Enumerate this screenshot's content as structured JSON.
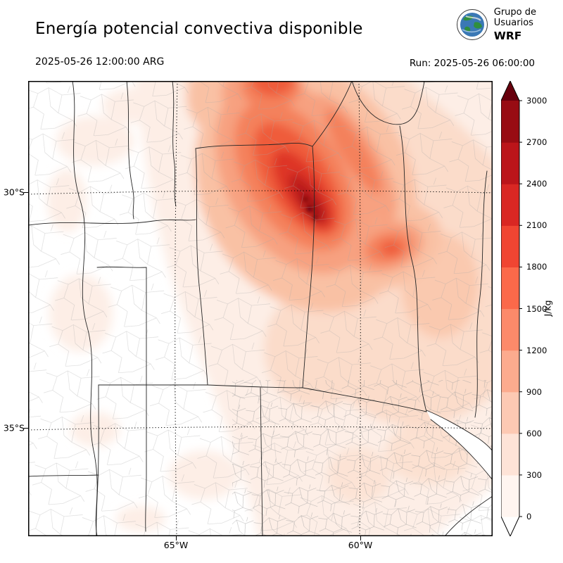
{
  "header": {
    "title": "Energía potencial convectiva disponible",
    "valid_time": "2025-05-26 12:00:00 ARG",
    "run_time": "Run: 2025-05-26 06:00:00",
    "logo": {
      "line1": "Grupo de",
      "line2": "Usuarios",
      "line3": "WRF"
    }
  },
  "map": {
    "lat_ticks": [
      "30°S",
      "35°S"
    ],
    "lon_ticks": [
      "65°W",
      "60°W"
    ]
  },
  "colorbar": {
    "unit": "J/kg",
    "ticks": [
      "0",
      "300",
      "600",
      "900",
      "1200",
      "1500",
      "1800",
      "2100",
      "2400",
      "2700",
      "3000"
    ],
    "segment_colors": [
      "#fff5f0",
      "#fee3d7",
      "#fdc9b3",
      "#fcab8e",
      "#fc8a6a",
      "#fb694a",
      "#f04532",
      "#d92723",
      "#bb151a",
      "#980c13"
    ],
    "over_color": "#67000d",
    "under_color": "#ffffff"
  },
  "chart_data": {
    "type": "heatmap",
    "title": "Energía potencial convectiva disponible",
    "units": "J/kg",
    "valid_time": "2025-05-26 12:00:00 ARG",
    "run": "2025-05-26 06:00:00",
    "colorbar_levels": [
      0,
      300,
      600,
      900,
      1200,
      1500,
      1800,
      2100,
      2400,
      2700,
      3000
    ],
    "lat_gridlines": [
      "30°S",
      "35°S"
    ],
    "lon_gridlines": [
      "65°W",
      "60°W"
    ],
    "field_summary": "Banda elongada NO-SE de CAPE 1200-2400 J/kg centrada cerca de 30°S entre 65°W y 60°W, con núcleo máximo > 2700 J/kg; valores moderados (600-1200) hacia el noreste y valores bajos (<300) al oeste y sur del dominio"
  }
}
